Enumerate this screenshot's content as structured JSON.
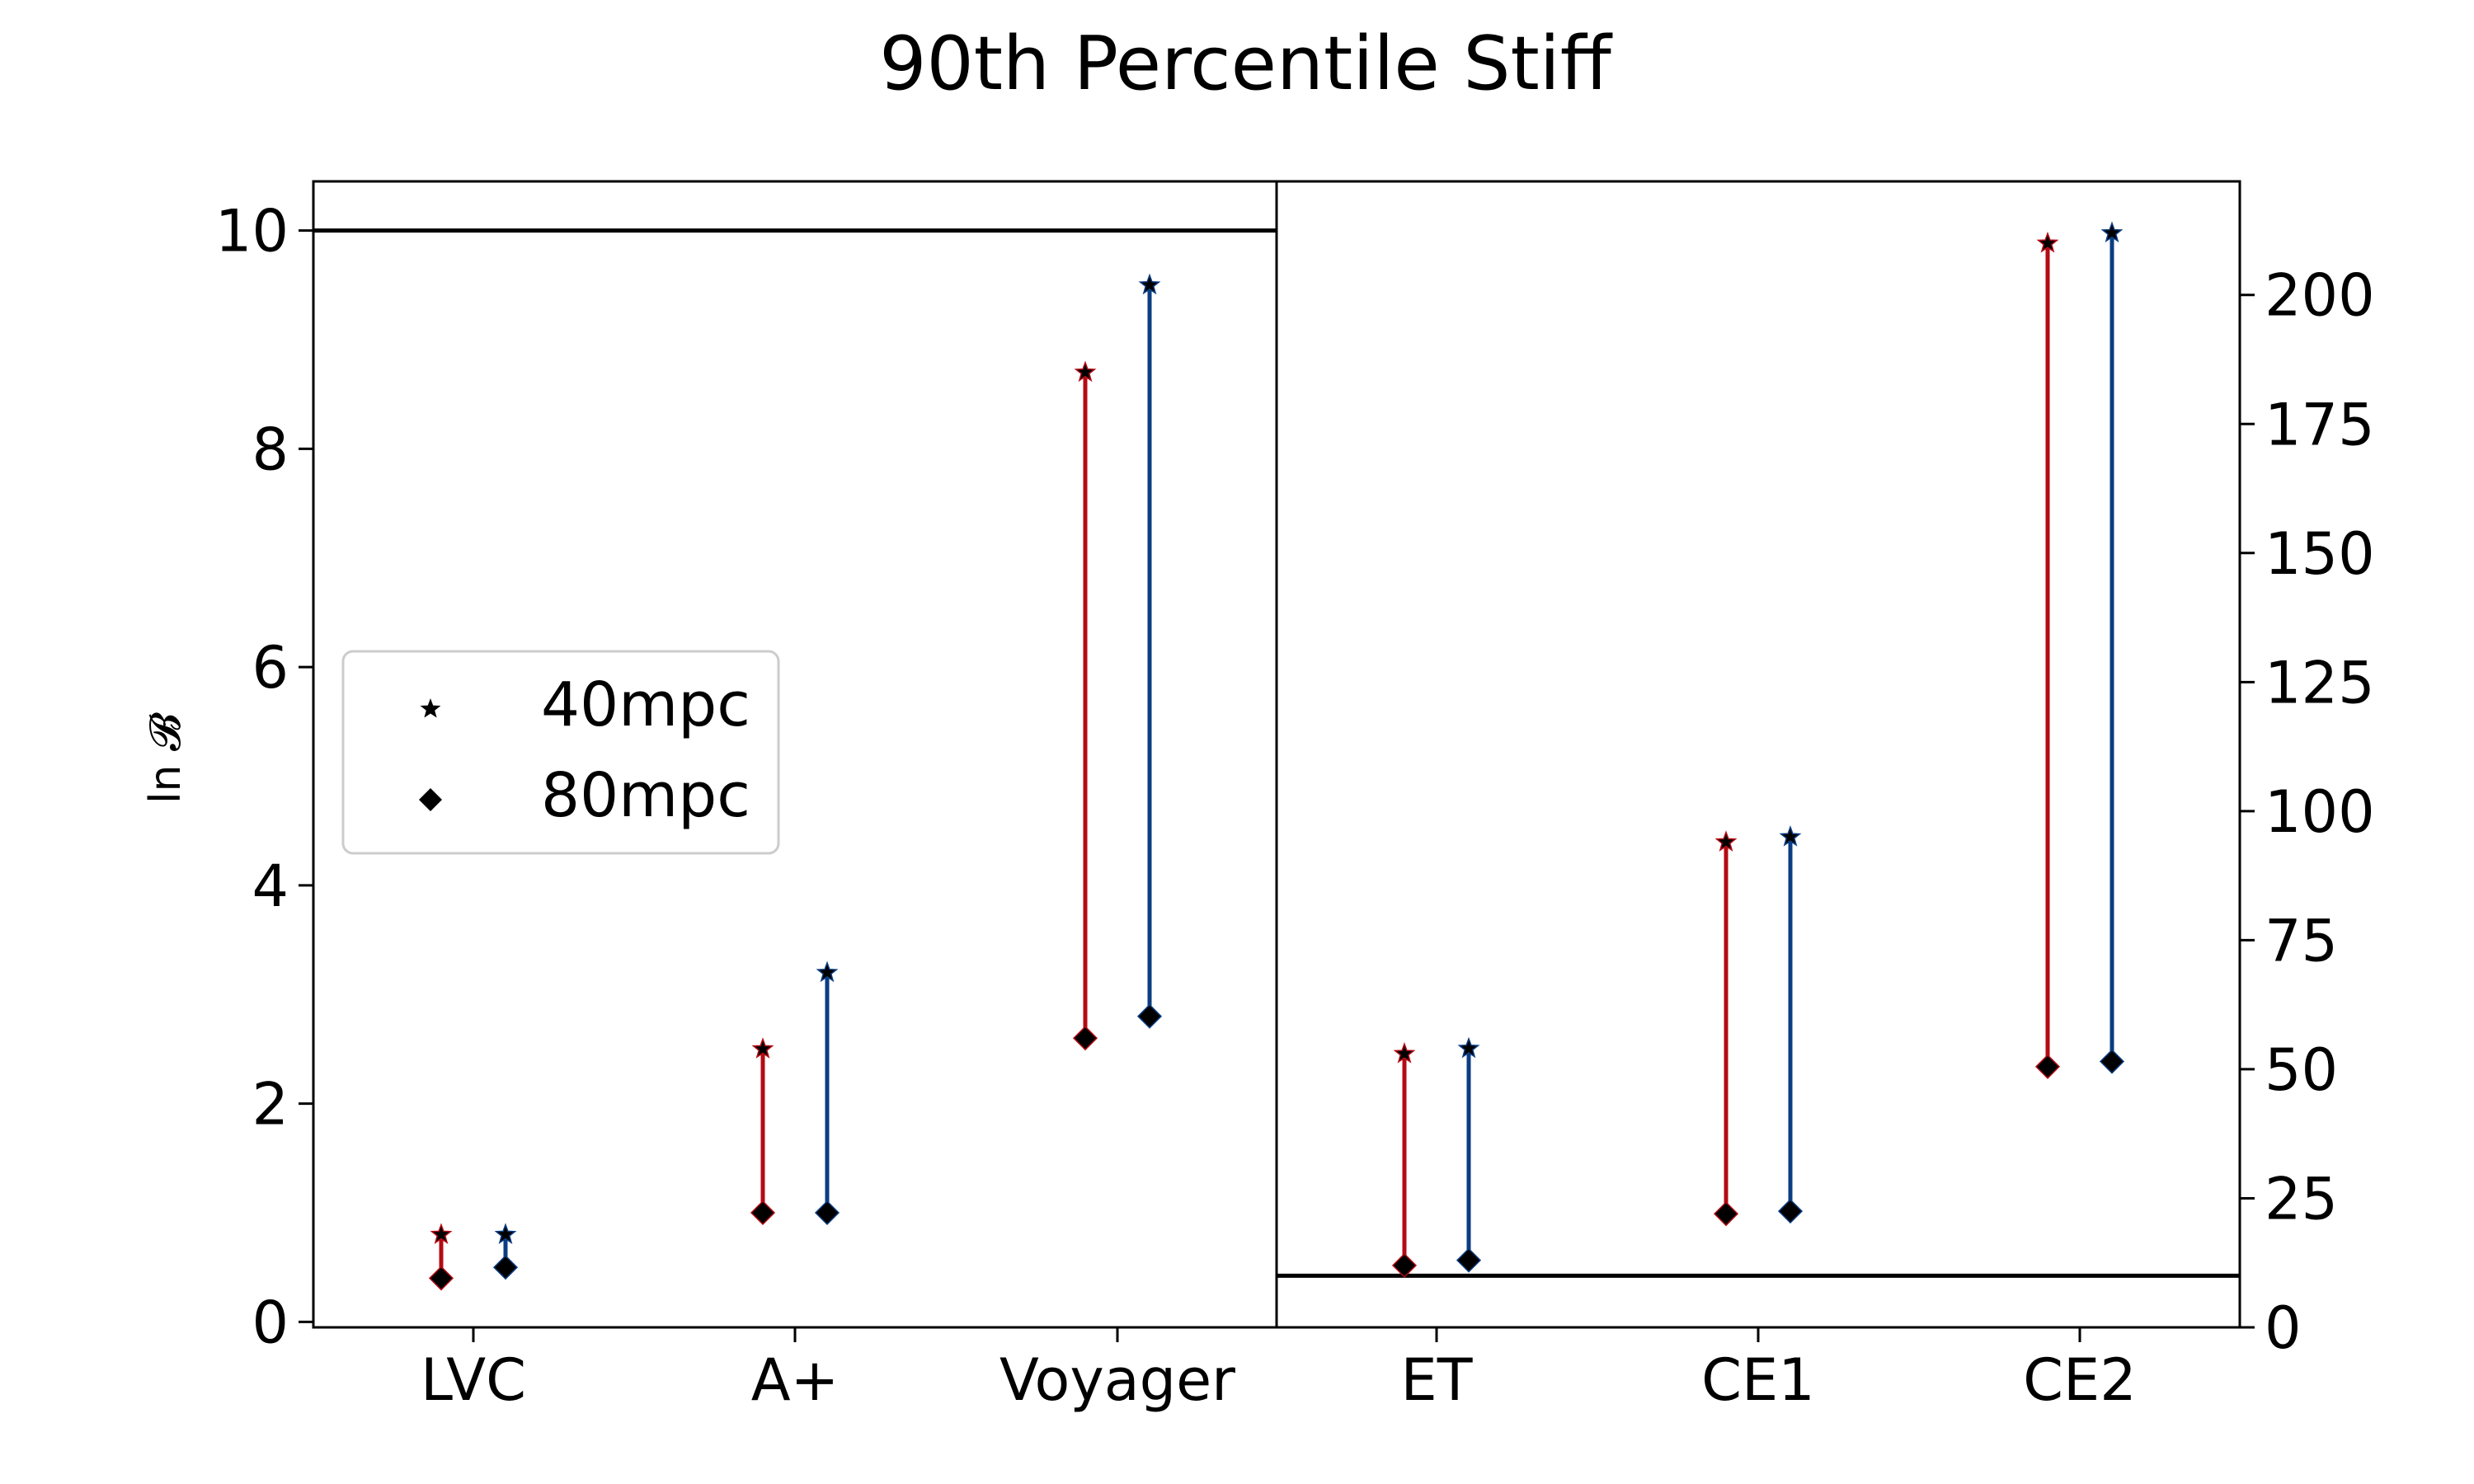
{
  "chart_data": {
    "type": "scatter",
    "title": "90th Percentile Stiff",
    "ylabel": "ln 𝓑",
    "colors": {
      "red": "#b40b14",
      "blue": "#0b3d82",
      "marker": "#000000"
    },
    "legend": {
      "placement": "center-left",
      "entries": [
        {
          "label": "40mpc",
          "marker": "star"
        },
        {
          "label": "80mpc",
          "marker": "diamond"
        }
      ]
    },
    "panels": [
      {
        "side": "left",
        "axis": "left",
        "ylim": [
          -0.05,
          10.45
        ],
        "yticks": [
          "0",
          "2",
          "4",
          "6",
          "8",
          "10"
        ],
        "threshold": 10,
        "categories": [
          "LVC",
          "A+",
          "Voyager"
        ],
        "pairs": [
          {
            "category": "LVC",
            "red": {
              "40mpc": 0.8,
              "80mpc": 0.4
            },
            "blue": {
              "40mpc": 0.8,
              "80mpc": 0.5
            }
          },
          {
            "category": "A+",
            "red": {
              "40mpc": 2.5,
              "80mpc": 1.0
            },
            "blue": {
              "40mpc": 3.2,
              "80mpc": 1.0
            }
          },
          {
            "category": "Voyager",
            "red": {
              "40mpc": 8.7,
              "80mpc": 2.6
            },
            "blue": {
              "40mpc": 9.5,
              "80mpc": 2.8
            }
          }
        ]
      },
      {
        "side": "right",
        "axis": "right",
        "ylim": [
          0,
          222
        ],
        "yticks": [
          "0",
          "25",
          "50",
          "75",
          "100",
          "125",
          "150",
          "175",
          "200"
        ],
        "threshold": 10,
        "categories": [
          "ET",
          "CE1",
          "CE2"
        ],
        "pairs": [
          {
            "category": "ET",
            "red": {
              "40mpc": 53,
              "80mpc": 12
            },
            "blue": {
              "40mpc": 54,
              "80mpc": 13
            }
          },
          {
            "category": "CE1",
            "red": {
              "40mpc": 94,
              "80mpc": 22
            },
            "blue": {
              "40mpc": 95,
              "80mpc": 22.5
            }
          },
          {
            "category": "CE2",
            "red": {
              "40mpc": 210,
              "80mpc": 50.5
            },
            "blue": {
              "40mpc": 212,
              "80mpc": 51.5
            }
          }
        ]
      }
    ]
  }
}
